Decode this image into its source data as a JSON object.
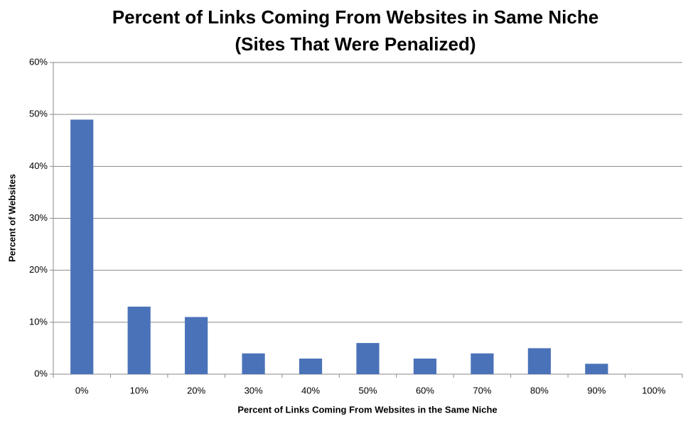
{
  "chart_data": {
    "type": "bar",
    "title": "Percent of Links Coming From Websites in Same Niche",
    "subtitle": "(Sites That Were Penalized)",
    "x_label": "Percent of Links Coming From Websites in the Same Niche",
    "y_label": "Percent of Websites",
    "categories": [
      "0%",
      "10%",
      "20%",
      "30%",
      "40%",
      "50%",
      "60%",
      "70%",
      "80%",
      "90%",
      "100%"
    ],
    "values": [
      49,
      13,
      11,
      4,
      3,
      6,
      3,
      4,
      5,
      2,
      0
    ],
    "color": "#4a72b8",
    "ylim": [
      0,
      60
    ],
    "yticks": [
      {
        "value": 0,
        "label": "0%"
      },
      {
        "value": 10,
        "label": "10%"
      },
      {
        "value": 20,
        "label": "20%"
      },
      {
        "value": 30,
        "label": "30%"
      },
      {
        "value": 40,
        "label": "40%"
      },
      {
        "value": 50,
        "label": "50%"
      },
      {
        "value": 60,
        "label": "60%"
      }
    ],
    "grid": true
  }
}
